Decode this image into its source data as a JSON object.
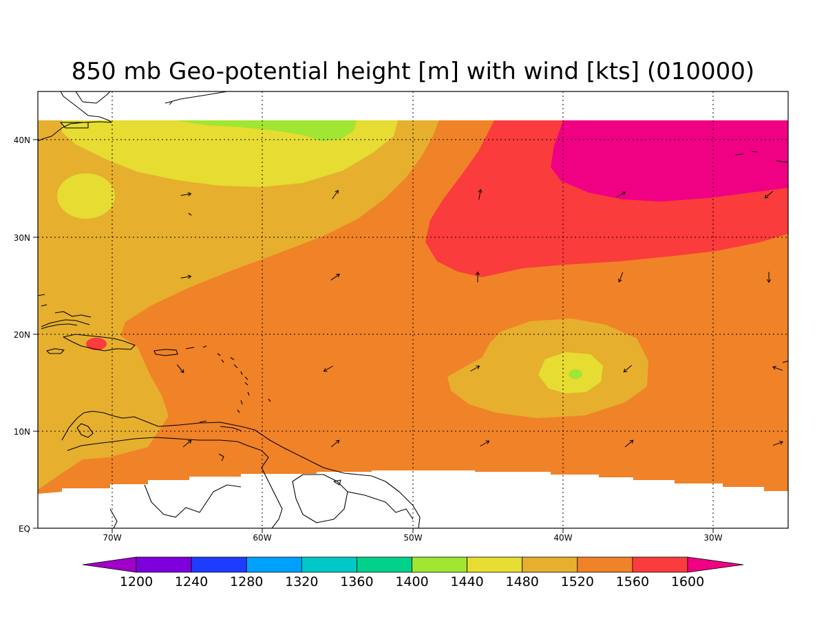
{
  "title": "850 mb Geo-potential height [m] with wind [kts] (010000)",
  "map": {
    "lon_range": [
      -75,
      -25
    ],
    "lat_range": [
      0,
      45
    ],
    "lon_ticks": [
      "70W",
      "60W",
      "50W",
      "40W",
      "30W"
    ],
    "lat_ticks": [
      "EQ",
      "10N",
      "20N",
      "30N",
      "40N"
    ],
    "grid": "dotted"
  },
  "colorbar": {
    "labels": [
      "1200",
      "1240",
      "1280",
      "1320",
      "1360",
      "1400",
      "1440",
      "1480",
      "1520",
      "1560",
      "1600"
    ],
    "colors": [
      "#a000c8",
      "#7e00dc",
      "#1e3cff",
      "#00a0ff",
      "#00c8c8",
      "#00d28c",
      "#a0e632",
      "#e6dc32",
      "#e6af2d",
      "#f08228",
      "#fa3c3c",
      "#f00082"
    ],
    "extends": "both"
  },
  "fill_colors": {
    "c1440": "#a0e632",
    "c1480": "#e6dc32",
    "c1520": "#e6af2d",
    "c1560": "#f08228",
    "c1600": "#fa3c3c",
    "c1600plus": "#f00082"
  },
  "wind_direction_to_deg": [
    [
      80,
      35,
      10,
      60,
      230,
      310,
      30
    ],
    [
      80,
      55,
      0,
      200,
      180,
      240,
      60
    ],
    [
      140,
      240,
      60,
      230,
      290,
      180,
      70
    ],
    [
      50,
      50,
      60,
      50,
      70,
      120,
      70
    ]
  ]
}
